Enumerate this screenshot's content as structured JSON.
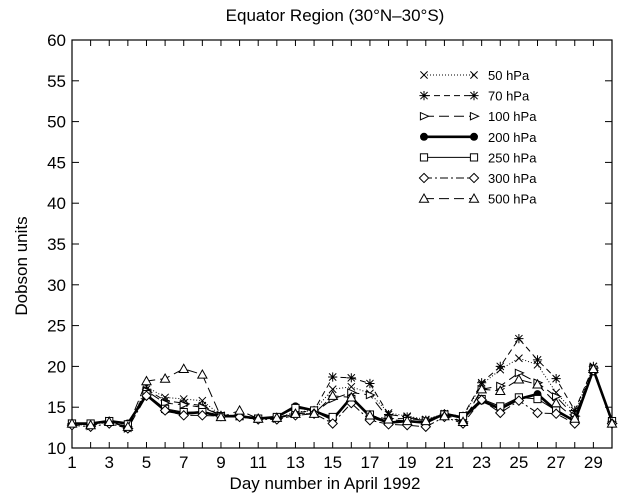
{
  "chart_data": {
    "type": "line",
    "title": "Equator Region (30°N–30°S)",
    "xlabel": "Day number in April 1992",
    "ylabel": "Dobson units",
    "xlim": [
      1,
      30
    ],
    "ylim": [
      10,
      60
    ],
    "xticks": [
      1,
      3,
      5,
      7,
      9,
      11,
      13,
      15,
      17,
      19,
      21,
      23,
      25,
      27,
      29
    ],
    "yticks": [
      10,
      15,
      20,
      25,
      30,
      35,
      40,
      45,
      50,
      55,
      60
    ],
    "legend_position": "top-right",
    "x": [
      1,
      2,
      3,
      4,
      5,
      6,
      7,
      8,
      9,
      10,
      11,
      12,
      13,
      14,
      15,
      16,
      17,
      18,
      19,
      20,
      21,
      22,
      23,
      24,
      25,
      26,
      27,
      28,
      29,
      30
    ],
    "series": [
      {
        "name": "50 hPa",
        "marker": "x",
        "dash": "1,2",
        "width": 1,
        "values": [
          13,
          12.8,
          13.3,
          12.4,
          17.5,
          16.2,
          16,
          15.8,
          14,
          14,
          13.6,
          13.7,
          14.4,
          14.6,
          17.2,
          17.5,
          16.7,
          14.3,
          13.9,
          13.5,
          14.2,
          13.8,
          17.8,
          19.6,
          21,
          20.2,
          16.8,
          14.3,
          20,
          13
        ]
      },
      {
        "name": "70 hPa",
        "marker": "asterisk",
        "dash": "6,4",
        "width": 1,
        "values": [
          13,
          12.8,
          13.3,
          12.6,
          17.2,
          15.8,
          15.5,
          15.2,
          14,
          14,
          13.6,
          13.7,
          14.3,
          14.6,
          18.7,
          18.6,
          17.9,
          14.1,
          13.8,
          13.4,
          14.2,
          13.9,
          18,
          20,
          23.4,
          20.8,
          18.5,
          14.6,
          20,
          13.2
        ]
      },
      {
        "name": "100 hPa",
        "marker": "tri-right",
        "dash": "10,5",
        "width": 1,
        "values": [
          13,
          12.7,
          13.3,
          12.4,
          17,
          15.5,
          15.3,
          15,
          14,
          13.9,
          13.6,
          13.6,
          14.2,
          14.3,
          16,
          16.8,
          16.5,
          13.6,
          13.6,
          13.4,
          14.1,
          13.2,
          17.2,
          17.6,
          19.2,
          18,
          16.3,
          13.9,
          19.8,
          13
        ]
      },
      {
        "name": "200 hPa",
        "marker": "filled-circle",
        "dash": "",
        "width": 2.6,
        "values": [
          13,
          13,
          13.3,
          13,
          16.5,
          14.6,
          14.2,
          14.4,
          13.9,
          13.9,
          13.6,
          13.8,
          15.1,
          14.6,
          13.5,
          16.2,
          13.9,
          13.1,
          13.3,
          13.1,
          14.2,
          13.7,
          15.8,
          14.8,
          16,
          16.6,
          14.6,
          13.3,
          19.6,
          13.3
        ]
      },
      {
        "name": "250 hPa",
        "marker": "square",
        "dash": "",
        "width": 1,
        "values": [
          13,
          13,
          13.3,
          12.9,
          16.6,
          14.8,
          14.4,
          14.4,
          13.9,
          13.9,
          13.6,
          13.8,
          14.9,
          14.6,
          13.8,
          16,
          14.1,
          13.2,
          13.3,
          13.1,
          14.1,
          13.9,
          16,
          15.1,
          16.2,
          16,
          14.6,
          13.4,
          19.6,
          13.3
        ]
      },
      {
        "name": "300 hPa",
        "marker": "diamond",
        "dash": "8,3,2,3",
        "width": 1,
        "values": [
          12.8,
          12.6,
          13,
          12.4,
          16.4,
          14.6,
          14,
          14,
          13.9,
          13.8,
          13.5,
          13.5,
          14,
          14.2,
          13,
          15.5,
          13.4,
          12.9,
          12.8,
          12.6,
          13.8,
          13,
          15.9,
          14.3,
          15.8,
          14.3,
          14.2,
          13,
          19.5,
          13
        ]
      },
      {
        "name": "500 hPa",
        "marker": "triangle",
        "dash": "10,5",
        "width": 1,
        "values": [
          13,
          12.8,
          13.2,
          12.6,
          18.2,
          18.5,
          19.7,
          19,
          13.8,
          14.6,
          13.6,
          13.7,
          14.2,
          14.2,
          16.4,
          16.2,
          14,
          13.5,
          13.3,
          13.3,
          13.9,
          13.2,
          17.2,
          17,
          18.4,
          17.8,
          15.5,
          13.6,
          19.7,
          13
        ]
      }
    ]
  }
}
